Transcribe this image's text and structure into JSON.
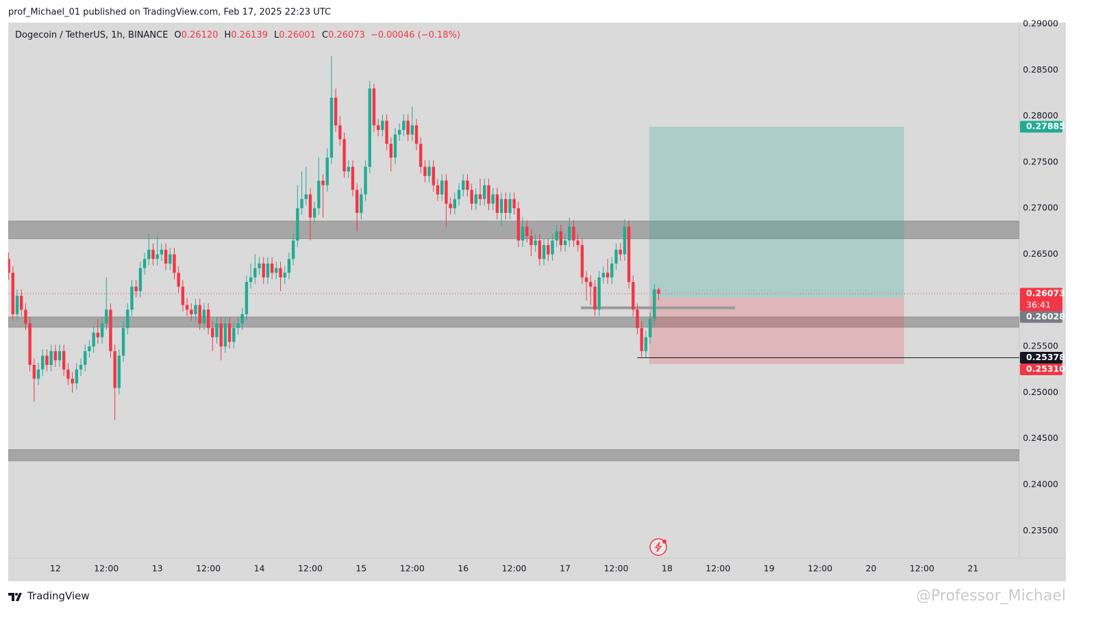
{
  "header": "prof_Michael_01 published on TradingView.com, Feb 17, 2025 22:23 UTC",
  "chart_data": {
    "type": "candlestick",
    "symbol": "Dogecoin / TetherUS, 1h, BINANCE",
    "legend": [
      {
        "key": "O",
        "value": "0.26120"
      },
      {
        "key": "H",
        "value": "0.26139"
      },
      {
        "key": "L",
        "value": "0.26001"
      },
      {
        "key": "C",
        "value": "0.26073"
      }
    ],
    "change": "−0.00046 (−0.18%)",
    "up_color": "#22ab94",
    "down_color": "#f23645",
    "open": [
      0.2645,
      0.263,
      0.2585,
      0.2605,
      0.259,
      0.2575,
      0.253,
      0.2515,
      0.2525,
      0.254,
      0.253,
      0.2545,
      0.2535,
      0.2545,
      0.2525,
      0.2515,
      0.251,
      0.2525,
      0.253,
      0.2545,
      0.255,
      0.2565,
      0.256,
      0.2575,
      0.259,
      0.2545,
      0.2505,
      0.254,
      0.257,
      0.259,
      0.2615,
      0.261,
      0.2635,
      0.2645,
      0.2655,
      0.2645,
      0.265,
      0.2655,
      0.264,
      0.265,
      0.263,
      0.2615,
      0.2595,
      0.259,
      0.2585,
      0.2595,
      0.2575,
      0.259,
      0.257,
      0.256,
      0.2575,
      0.255,
      0.2575,
      0.2555,
      0.257,
      0.2575,
      0.2585,
      0.262,
      0.2625,
      0.2635,
      0.264,
      0.2625,
      0.264,
      0.263,
      0.2635,
      0.2625,
      0.263,
      0.2645,
      0.2665,
      0.27,
      0.271,
      0.2715,
      0.269,
      0.27,
      0.273,
      0.2725,
      0.2755,
      0.282,
      0.279,
      0.2775,
      0.274,
      0.2745,
      0.272,
      0.2695,
      0.2715,
      0.2745,
      0.283,
      0.279,
      0.2785,
      0.2795,
      0.277,
      0.2755,
      0.278,
      0.2785,
      0.2795,
      0.278,
      0.279,
      0.277,
      0.2745,
      0.2735,
      0.2745,
      0.2725,
      0.2715,
      0.273,
      0.2705,
      0.27,
      0.271,
      0.272,
      0.273,
      0.272,
      0.2705,
      0.2715,
      0.271,
      0.2725,
      0.2705,
      0.2715,
      0.2695,
      0.271,
      0.2695,
      0.271,
      0.27,
      0.2665,
      0.268,
      0.267,
      0.266,
      0.2665,
      0.2645,
      0.266,
      0.265,
      0.2665,
      0.2675,
      0.266,
      0.2665,
      0.268,
      0.2665,
      0.266,
      0.2625,
      0.262,
      0.2615,
      0.259,
      0.2625,
      0.263,
      0.2625,
      0.264,
      0.2655,
      0.265,
      0.268,
      0.262,
      0.259,
      0.257,
      0.2545,
      0.256,
      0.258,
      0.2612
    ],
    "high": [
      0.2652,
      0.2637,
      0.2612,
      0.2612,
      0.2597,
      0.2582,
      0.2537,
      0.2532,
      0.2547,
      0.2547,
      0.2552,
      0.2552,
      0.2552,
      0.2552,
      0.2532,
      0.2522,
      0.2532,
      0.2537,
      0.2552,
      0.2557,
      0.2572,
      0.258,
      0.2582,
      0.2625,
      0.2597,
      0.2552,
      0.2547,
      0.2577,
      0.2597,
      0.2622,
      0.2622,
      0.2642,
      0.2652,
      0.2672,
      0.2662,
      0.267,
      0.2662,
      0.2662,
      0.2657,
      0.2657,
      0.2637,
      0.2622,
      0.2602,
      0.2597,
      0.2602,
      0.2602,
      0.2597,
      0.2597,
      0.2577,
      0.2582,
      0.2582,
      0.2582,
      0.2582,
      0.2577,
      0.2582,
      0.2592,
      0.2627,
      0.264,
      0.265,
      0.2647,
      0.2647,
      0.2647,
      0.2647,
      0.2642,
      0.2642,
      0.2637,
      0.2652,
      0.2672,
      0.2725,
      0.274,
      0.2745,
      0.2722,
      0.2707,
      0.2755,
      0.2737,
      0.2765,
      0.2865,
      0.283,
      0.28,
      0.2782,
      0.2752,
      0.2752,
      0.2727,
      0.2722,
      0.2752,
      0.2838,
      0.2835,
      0.2797,
      0.2802,
      0.2802,
      0.2777,
      0.2787,
      0.2792,
      0.2802,
      0.2802,
      0.281,
      0.2797,
      0.2777,
      0.2752,
      0.2752,
      0.2752,
      0.2732,
      0.2737,
      0.2737,
      0.2712,
      0.2717,
      0.2727,
      0.2737,
      0.2737,
      0.2727,
      0.2722,
      0.2732,
      0.2732,
      0.2732,
      0.2722,
      0.2722,
      0.2717,
      0.2717,
      0.2717,
      0.2717,
      0.2707,
      0.269,
      0.2687,
      0.2677,
      0.2672,
      0.2672,
      0.2667,
      0.2667,
      0.2672,
      0.2682,
      0.2682,
      0.2672,
      0.269,
      0.2687,
      0.2672,
      0.2667,
      0.2632,
      0.2627,
      0.2622,
      0.2632,
      0.2637,
      0.2645,
      0.2647,
      0.2662,
      0.2662,
      0.2688,
      0.2687,
      0.2627,
      0.2597,
      0.2577,
      0.2567,
      0.2587,
      0.2618,
      0.26139
    ],
    "low": [
      0.2622,
      0.2578,
      0.2578,
      0.2583,
      0.2568,
      0.2523,
      0.249,
      0.2508,
      0.2518,
      0.2523,
      0.2523,
      0.2528,
      0.2528,
      0.2518,
      0.2508,
      0.25,
      0.2503,
      0.2518,
      0.2523,
      0.2538,
      0.2543,
      0.2553,
      0.2553,
      0.2568,
      0.2538,
      0.247,
      0.2498,
      0.2533,
      0.2563,
      0.2583,
      0.2603,
      0.2603,
      0.2628,
      0.2638,
      0.2638,
      0.2638,
      0.2643,
      0.2633,
      0.2633,
      0.2623,
      0.2608,
      0.2588,
      0.2583,
      0.2578,
      0.2578,
      0.2568,
      0.2568,
      0.2563,
      0.2545,
      0.2553,
      0.2535,
      0.2543,
      0.2548,
      0.2548,
      0.2563,
      0.2568,
      0.2578,
      0.2613,
      0.2618,
      0.2628,
      0.2618,
      0.2618,
      0.2623,
      0.2623,
      0.261,
      0.2618,
      0.2623,
      0.2638,
      0.2658,
      0.2693,
      0.2703,
      0.2665,
      0.2683,
      0.2693,
      0.269,
      0.2718,
      0.2748,
      0.2783,
      0.2768,
      0.2733,
      0.2733,
      0.2713,
      0.2675,
      0.2688,
      0.2708,
      0.2738,
      0.2783,
      0.2778,
      0.2778,
      0.2763,
      0.274,
      0.2748,
      0.2773,
      0.2778,
      0.2773,
      0.2773,
      0.2763,
      0.2738,
      0.2728,
      0.2728,
      0.2718,
      0.2708,
      0.2708,
      0.268,
      0.2693,
      0.2693,
      0.2703,
      0.2713,
      0.2713,
      0.2698,
      0.2698,
      0.2703,
      0.2703,
      0.2698,
      0.2698,
      0.2688,
      0.268,
      0.2688,
      0.2688,
      0.2693,
      0.2658,
      0.2658,
      0.2663,
      0.2648,
      0.2653,
      0.2638,
      0.2638,
      0.2643,
      0.2643,
      0.2658,
      0.2653,
      0.2653,
      0.2658,
      0.2658,
      0.2653,
      0.2618,
      0.26,
      0.2595,
      0.2583,
      0.2583,
      0.2618,
      0.2618,
      0.2618,
      0.2633,
      0.2643,
      0.2643,
      0.2613,
      0.2583,
      0.2563,
      0.2537,
      0.2538,
      0.2553,
      0.2573,
      0.26001
    ],
    "close": [
      0.263,
      0.2585,
      0.2605,
      0.259,
      0.2575,
      0.253,
      0.2515,
      0.2525,
      0.254,
      0.253,
      0.2545,
      0.2535,
      0.2545,
      0.2525,
      0.2515,
      0.251,
      0.2525,
      0.253,
      0.2545,
      0.255,
      0.2565,
      0.256,
      0.2575,
      0.259,
      0.2545,
      0.2505,
      0.254,
      0.257,
      0.259,
      0.2615,
      0.261,
      0.2635,
      0.2645,
      0.2655,
      0.2645,
      0.265,
      0.2655,
      0.264,
      0.265,
      0.263,
      0.2615,
      0.2595,
      0.259,
      0.2585,
      0.2595,
      0.2575,
      0.259,
      0.257,
      0.256,
      0.2575,
      0.255,
      0.2575,
      0.2555,
      0.257,
      0.2575,
      0.2585,
      0.262,
      0.2625,
      0.2635,
      0.264,
      0.2625,
      0.264,
      0.263,
      0.2635,
      0.2625,
      0.263,
      0.2645,
      0.2665,
      0.27,
      0.271,
      0.2715,
      0.269,
      0.27,
      0.273,
      0.2725,
      0.2755,
      0.282,
      0.279,
      0.2775,
      0.274,
      0.2745,
      0.272,
      0.2695,
      0.2715,
      0.2745,
      0.283,
      0.279,
      0.2785,
      0.2795,
      0.277,
      0.2755,
      0.278,
      0.2785,
      0.2795,
      0.278,
      0.279,
      0.277,
      0.2745,
      0.2735,
      0.2745,
      0.2725,
      0.2715,
      0.273,
      0.2705,
      0.27,
      0.271,
      0.272,
      0.273,
      0.272,
      0.2705,
      0.2715,
      0.271,
      0.2725,
      0.2705,
      0.2715,
      0.2695,
      0.271,
      0.2695,
      0.271,
      0.27,
      0.2665,
      0.268,
      0.267,
      0.266,
      0.2665,
      0.2645,
      0.266,
      0.265,
      0.2665,
      0.2675,
      0.266,
      0.2665,
      0.268,
      0.2665,
      0.266,
      0.2625,
      0.262,
      0.2615,
      0.259,
      0.2625,
      0.263,
      0.2625,
      0.264,
      0.2655,
      0.265,
      0.268,
      0.262,
      0.259,
      0.257,
      0.2545,
      0.256,
      0.258,
      0.2612,
      0.26073
    ],
    "xlim": [
      -0.1,
      237.9
    ],
    "ylim": [
      0.23205,
      0.29015
    ],
    "yticks": [
      {
        "value": 0.29,
        "label": "0.29000"
      },
      {
        "value": 0.285,
        "label": "0.28500"
      },
      {
        "value": 0.28,
        "label": "0.28000"
      },
      {
        "value": 0.275,
        "label": "0.27500"
      },
      {
        "value": 0.27,
        "label": "0.27000"
      },
      {
        "value": 0.265,
        "label": "0.26500"
      },
      {
        "value": 0.26,
        "label": "0.26000"
      },
      {
        "value": 0.255,
        "label": "0.25500"
      },
      {
        "value": 0.25,
        "label": "0.25000"
      },
      {
        "value": 0.245,
        "label": "0.24500"
      },
      {
        "value": 0.24,
        "label": "0.24000"
      },
      {
        "value": 0.235,
        "label": "0.23500"
      }
    ],
    "xticks": [
      {
        "value": 11,
        "label": "12"
      },
      {
        "value": 23,
        "label": "12:00"
      },
      {
        "value": 35,
        "label": "13"
      },
      {
        "value": 47,
        "label": "12:00"
      },
      {
        "value": 59,
        "label": "14"
      },
      {
        "value": 71,
        "label": "12:00"
      },
      {
        "value": 83,
        "label": "15"
      },
      {
        "value": 95,
        "label": "12:00"
      },
      {
        "value": 107,
        "label": "16"
      },
      {
        "value": 119,
        "label": "12:00"
      },
      {
        "value": 131,
        "label": "17"
      },
      {
        "value": 143,
        "label": "12:00"
      },
      {
        "value": 155,
        "label": "18"
      },
      {
        "value": 167,
        "label": "12:00"
      },
      {
        "value": 179,
        "label": "19"
      },
      {
        "value": 191,
        "label": "12:00"
      },
      {
        "value": 203,
        "label": "20"
      },
      {
        "value": 215,
        "label": "12:00"
      },
      {
        "value": 227,
        "label": "21"
      }
    ],
    "grid": false,
    "zones": [
      {
        "from": 0.2667,
        "to": 0.2686
      },
      {
        "from": 0.2571,
        "to": 0.2582
      },
      {
        "from": 0.2426,
        "to": 0.2438
      }
    ],
    "zone_color": "#a6a6a6",
    "position": {
      "entry": 0.26028,
      "target": 0.27885,
      "stop": 0.2531,
      "start": 150.8,
      "end": 210.8,
      "profit_color": "#26a69a",
      "loss_color": "#f23645"
    },
    "support_line": {
      "value": 0.2592,
      "start": 134.7,
      "end": 171
    },
    "stop_line": {
      "value": 0.25378,
      "start": 148
    },
    "price_labels": [
      {
        "value": 0.27885,
        "label": "0.27885",
        "color": "#22ab94"
      },
      {
        "value": 0.26073,
        "label": "0.26073",
        "color": "#f23645"
      },
      {
        "value": 0.26028,
        "label": "0.26028",
        "color": "#787b86"
      },
      {
        "value": 0.25378,
        "label": "0.25378",
        "color": "#131722"
      },
      {
        "value": 0.2531,
        "label": "0.25310",
        "color": "#f23645"
      }
    ],
    "countdown": "36:41"
  },
  "footer": {
    "brand": "TradingView",
    "watermark": "@Professor_Michael"
  }
}
